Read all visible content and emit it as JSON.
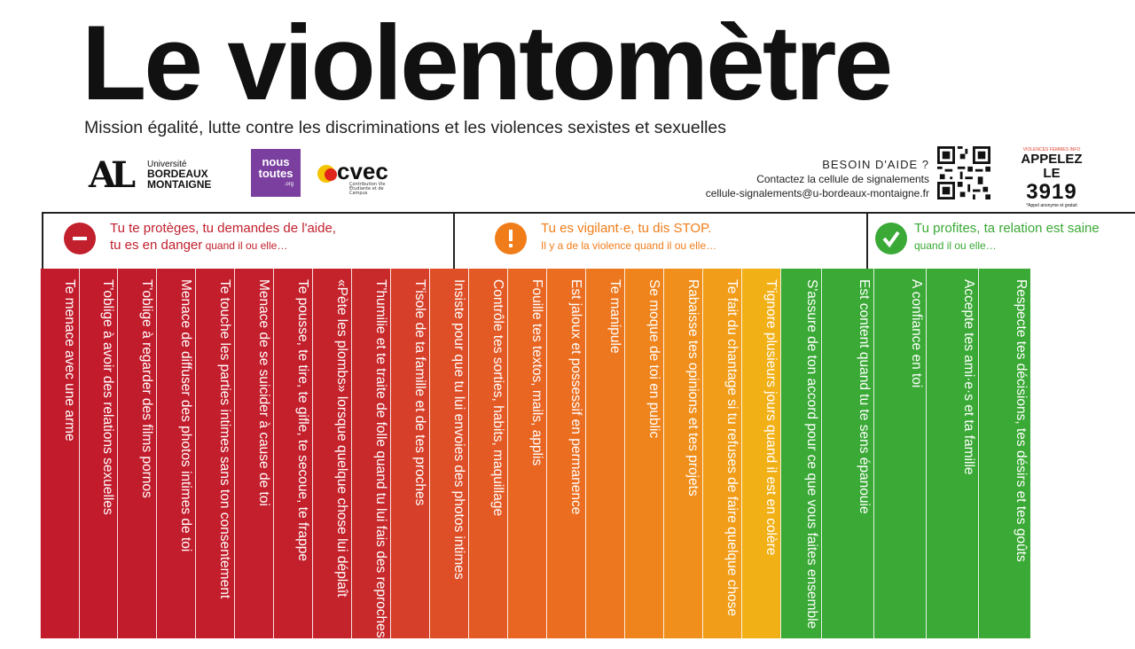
{
  "header": {
    "title": "Le violentomètre",
    "subtitle": "Mission égalité, lutte contre les discriminations et les violences sexistes et sexuelles"
  },
  "logos": {
    "ubm_line1": "Université",
    "ubm_line2": "BORDEAUX",
    "ubm_line3": "MONTAIGNE",
    "noustoutes_line1": "nous",
    "noustoutes_line2": "toutes",
    "noustoutes_line3": ".org",
    "cvec": "cvec",
    "cvec_small": "Contribution Vie Étudiante et de Campus"
  },
  "help": {
    "heading": "BESOIN D'AIDE ?",
    "line1": "Contactez la cellule de signalements",
    "email": "cellule-signalements@u-bordeaux-montaigne.fr"
  },
  "hotline": {
    "small": "VIOLENCES FEMMES INFO",
    "call": "APPELEZ LE",
    "number": "3919",
    "footnote": "*Appel anonyme et gratuit"
  },
  "categories": [
    {
      "icon": "minus-icon",
      "color": "#c2202d",
      "line1": "Tu te protèges, tu demandes de l'aide,",
      "line2a": "tu es en danger",
      "line2b": " quand il ou elle…"
    },
    {
      "icon": "exclamation-icon",
      "color": "#f07d1a",
      "line1": "Tu es vigilant·e, tu dis STOP.",
      "line2a": "Il y a de la violence quand il ou elle…",
      "line2b": ""
    },
    {
      "icon": "check-icon",
      "color": "#3aa935",
      "line1": "Tu profites, ta relation est saine",
      "line2a": "quand il ou elle…",
      "line2b": ""
    }
  ],
  "bars": [
    {
      "text": "Te menace avec une arme",
      "color": "#c11b2c"
    },
    {
      "text": "T'oblige à avoir des relations sexuelles",
      "color": "#c11b2c"
    },
    {
      "text": "T'oblige à regarder des films pornos",
      "color": "#c11c2c"
    },
    {
      "text": "Menace de diffuser des photos intimes de toi",
      "color": "#c21d2c"
    },
    {
      "text": "Te touche les parties intimes sans ton consentement",
      "color": "#c21e2c"
    },
    {
      "text": "Menace de se suicider à cause de toi",
      "color": "#c31f2c"
    },
    {
      "text": "Te pousse, te tire, te gifle, te secoue, te frappe",
      "color": "#c3202c"
    },
    {
      "text": "«Pète les plombs» lorsque quelque chose lui déplaît",
      "color": "#c5232b"
    },
    {
      "text": "T'humilie et te traite de folle quand tu lui fais des reproches",
      "color": "#c8292b"
    },
    {
      "text": "T'isole de ta famille et de tes proches",
      "color": "#d6402a"
    },
    {
      "text": "Insiste pour que tu lui envoies des photos intimes",
      "color": "#de4f28"
    },
    {
      "text": "Contrôle tes sorties, habits, maquillage",
      "color": "#e45a25"
    },
    {
      "text": "Fouille tes textos, mails, applis",
      "color": "#e86522"
    },
    {
      "text": "Est jaloux et possessif en permanence",
      "color": "#eb6e20"
    },
    {
      "text": "Te manipule",
      "color": "#ed771e"
    },
    {
      "text": "Se moque de toi en public",
      "color": "#ef831c"
    },
    {
      "text": "Rabaisse tes opinions et tes projets",
      "color": "#f08f1b"
    },
    {
      "text": "Te fait du chantage si tu refuses de faire quelque chose",
      "color": "#f19d19"
    },
    {
      "text": "T'ignore plusieurs jours quand il est en colère",
      "color": "#f2b017"
    },
    {
      "text": "S'assure de ton accord pour ce que vous faites ensemble",
      "color": "#3aa935"
    },
    {
      "text": "Est content quand tu te sens épanouie",
      "color": "#3aa935"
    },
    {
      "text": "A confiance en toi",
      "color": "#3aa935"
    },
    {
      "text": "Accepte tes ami·e·s et ta famille",
      "color": "#3aa935"
    },
    {
      "text": "Respecte tes décisions, tes désirs et tes goûts",
      "color": "#3aa935"
    }
  ]
}
